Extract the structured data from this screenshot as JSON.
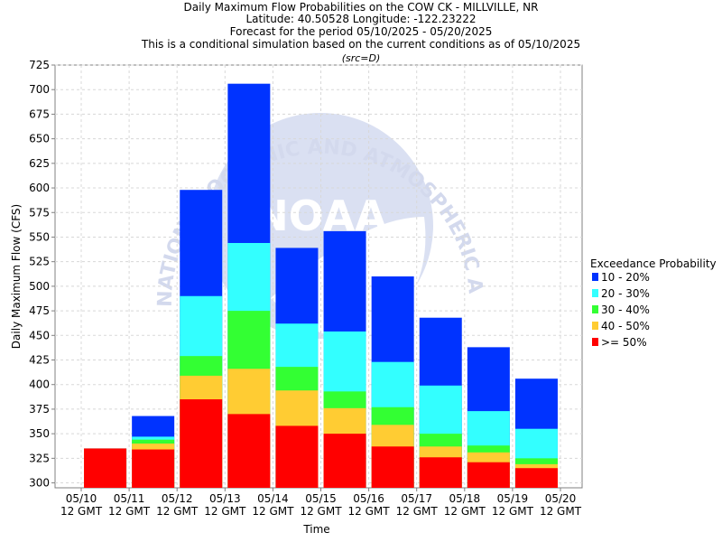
{
  "chart_data": {
    "type": "bar",
    "stacked": true,
    "title_lines": [
      "Daily Maximum Flow Probabilities on the COW CK - MILLVILLE, NR",
      "Latitude: 40.50528 Longitude: -122.23222",
      "Forecast for the period 05/10/2025 - 05/20/2025",
      "This is a conditional simulation based on the current conditions as of 05/10/2025"
    ],
    "subtitle": "(src=D)",
    "xlabel": "Time",
    "ylabel": "Daily Maximum Flow (CFS)",
    "ylim": [
      295,
      725
    ],
    "yticks": [
      300,
      325,
      350,
      375,
      400,
      425,
      450,
      475,
      500,
      525,
      550,
      575,
      600,
      625,
      650,
      675,
      700,
      725
    ],
    "x_ticks": [
      [
        "05/10",
        "12 GMT"
      ],
      [
        "05/11",
        "12 GMT"
      ],
      [
        "05/12",
        "12 GMT"
      ],
      [
        "05/13",
        "12 GMT"
      ],
      [
        "05/14",
        "12 GMT"
      ],
      [
        "05/15",
        "12 GMT"
      ],
      [
        "05/16",
        "12 GMT"
      ],
      [
        "05/17",
        "12 GMT"
      ],
      [
        "05/18",
        "12 GMT"
      ],
      [
        "05/19",
        "12 GMT"
      ],
      [
        "05/20",
        "12 GMT"
      ]
    ],
    "grid": true,
    "legend_title": "Exceedance Probability",
    "legend_position": "right",
    "series": [
      {
        "name": "10 - 20%",
        "color": "#0033ff"
      },
      {
        "name": "20 - 30%",
        "color": "#33ffff"
      },
      {
        "name": "30 - 40%",
        "color": "#33ff33"
      },
      {
        "name": "40 - 50%",
        "color": "#ffcc33"
      },
      {
        "name": ">= 50%",
        "color": "#ff0000"
      }
    ],
    "bars": [
      {
        "day": "05/10",
        "levels": [
          335,
          335,
          335,
          335,
          335
        ]
      },
      {
        "day": "05/11",
        "levels": [
          334,
          340,
          344,
          347,
          368
        ]
      },
      {
        "day": "05/12",
        "levels": [
          385,
          409,
          429,
          490,
          598
        ]
      },
      {
        "day": "05/13",
        "levels": [
          370,
          416,
          475,
          544,
          706
        ]
      },
      {
        "day": "05/14",
        "levels": [
          358,
          394,
          418,
          462,
          539
        ]
      },
      {
        "day": "05/15",
        "levels": [
          350,
          376,
          393,
          454,
          556
        ]
      },
      {
        "day": "05/16",
        "levels": [
          337,
          359,
          377,
          423,
          510
        ]
      },
      {
        "day": "05/17",
        "levels": [
          326,
          337,
          350,
          399,
          468
        ]
      },
      {
        "day": "05/18",
        "levels": [
          321,
          331,
          338,
          373,
          438
        ]
      },
      {
        "day": "05/19",
        "levels": [
          315,
          319,
          325,
          355,
          406
        ]
      }
    ],
    "bar_levels_order": [
      ">= 50%",
      "40 - 50%",
      "30 - 40%",
      "20 - 30%",
      "10 - 20%"
    ]
  },
  "watermark": {
    "ring_text": "NATIONAL OCEANIC AND ATMOSPHERIC ADMINISTRATION",
    "center_text": "NOAA"
  }
}
